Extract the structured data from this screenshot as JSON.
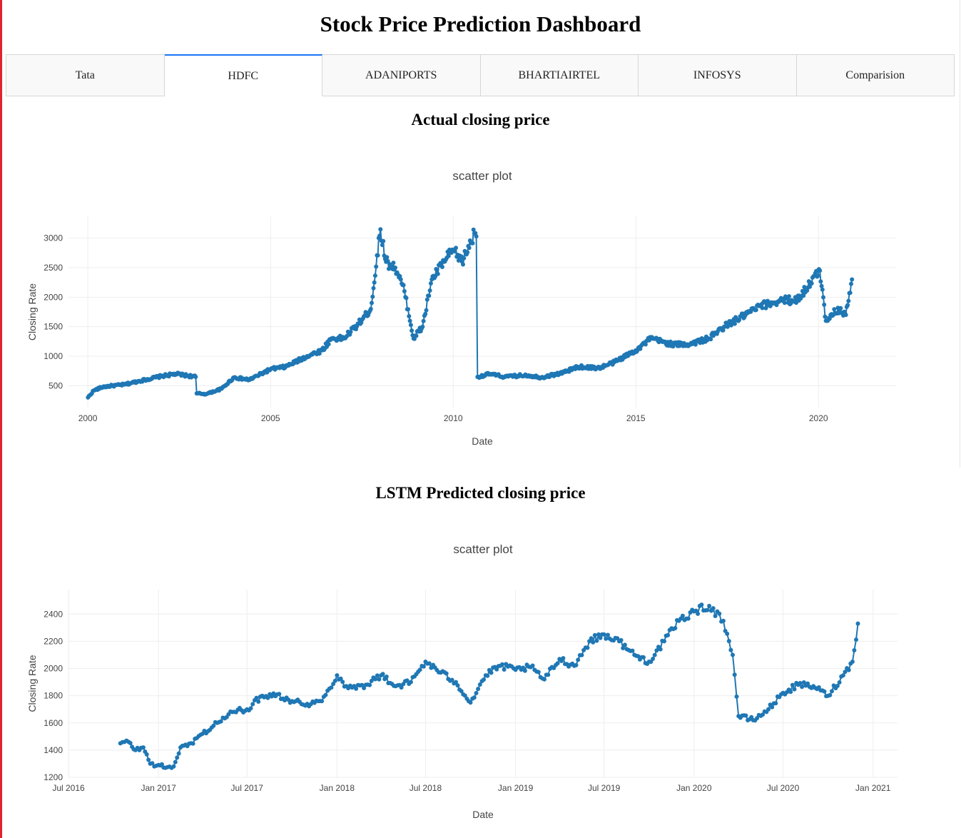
{
  "header": {
    "title": "Stock Price Prediction Dashboard"
  },
  "tabs": [
    {
      "label": "Tata",
      "active": false
    },
    {
      "label": "HDFC",
      "active": true
    },
    {
      "label": "ADANIPORTS",
      "active": false
    },
    {
      "label": "BHARTIAIRTEL",
      "active": false
    },
    {
      "label": "INFOSYS",
      "active": false
    },
    {
      "label": "Comparision",
      "active": false
    }
  ],
  "sections": {
    "actual": {
      "heading": "Actual closing price"
    },
    "predicted": {
      "heading": "LSTM Predicted closing price"
    }
  },
  "colors": {
    "marker": "#1f77b4",
    "grid": "#eeeeee",
    "active_tab": "#1975fa"
  },
  "chart_data": [
    {
      "type": "scatter",
      "mode": "lines+markers",
      "title": "scatter plot",
      "xlabel": "Date",
      "ylabel": "Closing Rate",
      "x_ticks": [
        {
          "date": "2000-01-01",
          "label": "2000"
        },
        {
          "date": "2005-01-01",
          "label": "2005"
        },
        {
          "date": "2010-01-01",
          "label": "2010"
        },
        {
          "date": "2015-01-01",
          "label": "2015"
        },
        {
          "date": "2020-01-01",
          "label": "2020"
        }
      ],
      "y_ticks": [
        500,
        1000,
        1500,
        2000,
        2500,
        3000
      ],
      "xlim": [
        "1999-06-22",
        "2022-02-15"
      ],
      "ylim": [
        130,
        3370
      ],
      "grid": true,
      "series": [
        {
          "x": [
            "2000-01-03",
            "2000-03-01",
            "2000-06-01",
            "2000-09-01",
            "2001-01-01",
            "2001-06-01",
            "2002-01-01",
            "2002-06-01",
            "2002-12-15",
            "2002-12-25",
            "2003-04-01",
            "2003-09-01",
            "2004-01-01",
            "2004-06-01",
            "2005-01-01",
            "2005-06-01",
            "2006-01-01",
            "2006-06-01",
            "2006-09-01",
            "2007-01-01",
            "2007-06-01",
            "2007-10-01",
            "2008-01-05",
            "2008-03-01",
            "2008-06-01",
            "2008-09-01",
            "2008-12-01",
            "2009-03-01",
            "2009-06-01",
            "2009-10-01",
            "2010-01-01",
            "2010-04-01",
            "2010-08-01",
            "2010-08-20",
            "2010-09-01",
            "2011-01-01",
            "2011-06-01",
            "2012-01-01",
            "2012-06-01",
            "2013-01-01",
            "2013-06-01",
            "2014-01-01",
            "2014-06-01",
            "2015-01-01",
            "2015-06-01",
            "2016-01-01",
            "2016-06-01",
            "2017-01-01",
            "2017-06-01",
            "2018-01-01",
            "2018-06-01",
            "2019-01-01",
            "2019-06-01",
            "2020-01-15",
            "2020-03-15",
            "2020-05-01",
            "2020-08-01",
            "2020-10-01",
            "2020-12-01"
          ],
          "y": [
            300,
            420,
            480,
            500,
            520,
            580,
            660,
            700,
            650,
            370,
            360,
            450,
            640,
            600,
            780,
            820,
            1000,
            1100,
            1300,
            1300,
            1550,
            1800,
            3150,
            2600,
            2500,
            2100,
            1300,
            1500,
            2300,
            2600,
            2800,
            2600,
            3080,
            3030,
            650,
            700,
            650,
            680,
            640,
            720,
            820,
            800,
            900,
            1100,
            1300,
            1200,
            1200,
            1300,
            1500,
            1700,
            1850,
            1950,
            1950,
            2450,
            1600,
            1700,
            1800,
            1700,
            2300
          ]
        }
      ]
    },
    {
      "type": "scatter",
      "mode": "lines+markers",
      "title": "scatter plot",
      "xlabel": "Date",
      "ylabel": "Closing Rate",
      "x_ticks": [
        {
          "date": "2016-07-01",
          "label": "Jul 2016"
        },
        {
          "date": "2017-01-01",
          "label": "Jan 2017"
        },
        {
          "date": "2017-07-01",
          "label": "Jul 2017"
        },
        {
          "date": "2018-01-01",
          "label": "Jan 2018"
        },
        {
          "date": "2018-07-01",
          "label": "Jul 2018"
        },
        {
          "date": "2019-01-01",
          "label": "Jan 2019"
        },
        {
          "date": "2019-07-01",
          "label": "Jul 2019"
        },
        {
          "date": "2020-01-01",
          "label": "Jan 2020"
        },
        {
          "date": "2020-07-01",
          "label": "Jul 2020"
        },
        {
          "date": "2021-01-01",
          "label": "Jan 2021"
        }
      ],
      "y_ticks": [
        1200,
        1400,
        1600,
        1800,
        2000,
        2200,
        2400
      ],
      "xlim": [
        "2016-07-01",
        "2021-02-20"
      ],
      "ylim": [
        1200,
        2580
      ],
      "grid": true,
      "series": [
        {
          "x": [
            "2016-10-15",
            "2016-11-01",
            "2016-11-15",
            "2016-12-01",
            "2016-12-15",
            "2017-01-01",
            "2017-01-15",
            "2017-02-01",
            "2017-02-15",
            "2017-03-01",
            "2017-04-01",
            "2017-05-01",
            "2017-06-01",
            "2017-07-01",
            "2017-08-01",
            "2017-09-01",
            "2017-10-01",
            "2017-11-01",
            "2017-12-01",
            "2018-01-01",
            "2018-01-20",
            "2018-02-01",
            "2018-03-01",
            "2018-04-01",
            "2018-05-01",
            "2018-06-01",
            "2018-07-01",
            "2018-08-01",
            "2018-09-01",
            "2018-10-01",
            "2018-11-01",
            "2018-12-01",
            "2019-01-01",
            "2019-02-01",
            "2019-03-01",
            "2019-04-01",
            "2019-05-01",
            "2019-06-01",
            "2019-07-01",
            "2019-08-01",
            "2019-09-01",
            "2019-10-01",
            "2019-11-01",
            "2019-12-01",
            "2020-01-01",
            "2020-02-01",
            "2020-03-01",
            "2020-03-20",
            "2020-04-01",
            "2020-05-01",
            "2020-06-01",
            "2020-07-01",
            "2020-08-01",
            "2020-09-01",
            "2020-10-01",
            "2020-11-01",
            "2020-11-20",
            "2020-12-01"
          ],
          "y": [
            1450,
            1460,
            1400,
            1420,
            1300,
            1290,
            1270,
            1280,
            1420,
            1430,
            1520,
            1600,
            1680,
            1700,
            1800,
            1810,
            1760,
            1740,
            1760,
            1950,
            1870,
            1860,
            1880,
            1950,
            1870,
            1900,
            2050,
            1970,
            1900,
            1750,
            1950,
            2020,
            1990,
            2010,
            1920,
            2070,
            2020,
            2200,
            2250,
            2200,
            2100,
            2050,
            2200,
            2350,
            2420,
            2460,
            2350,
            2100,
            1650,
            1620,
            1700,
            1820,
            1880,
            1870,
            1800,
            1950,
            2050,
            2330
          ]
        }
      ]
    }
  ]
}
